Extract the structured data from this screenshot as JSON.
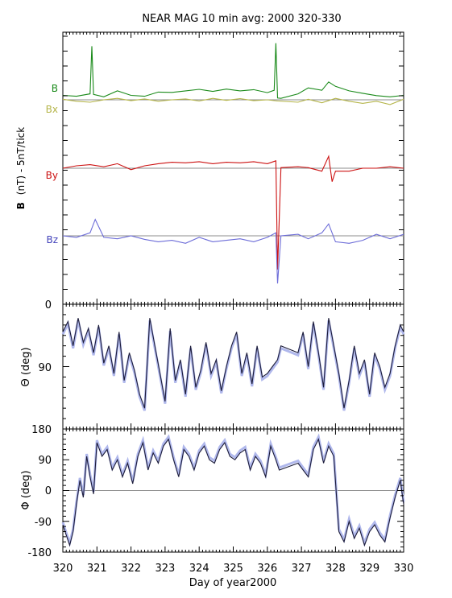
{
  "chart_data": [
    {
      "type": "line",
      "panel": "magnetic-field-components",
      "title": "NEAR MAG 10 min avg: 2000 320-330",
      "ylabel_bold": "B",
      "ylabel_rest": "(nT) - 5nT/tick",
      "ytick_labels": [
        "0"
      ],
      "xlim": [
        320,
        330
      ],
      "series": [
        {
          "name": "B",
          "color": "#1a8a1a",
          "baseline_label_only": true,
          "x": [
            320.0,
            320.4,
            320.8,
            320.85,
            320.9,
            321.2,
            321.6,
            322.0,
            322.4,
            322.8,
            323.2,
            323.6,
            324.0,
            324.4,
            324.8,
            325.2,
            325.6,
            326.0,
            326.2,
            326.25,
            326.3,
            326.4,
            326.9,
            327.2,
            327.6,
            327.8,
            328.0,
            328.4,
            328.8,
            329.2,
            329.6,
            330.0
          ],
          "values": [
            1.5,
            1.2,
            2.0,
            18.0,
            1.8,
            1.0,
            3.0,
            1.5,
            1.2,
            2.6,
            2.5,
            3.0,
            3.5,
            2.8,
            3.6,
            3.0,
            3.4,
            2.4,
            3.2,
            19.0,
            0.6,
            0.5,
            2.0,
            4.0,
            3.2,
            6.0,
            4.5,
            3.0,
            2.2,
            1.4,
            1.0,
            1.5
          ]
        },
        {
          "name": "Bx",
          "color": "#b5b54a",
          "x": [
            320.0,
            320.4,
            320.8,
            321.2,
            321.6,
            322.0,
            322.4,
            322.8,
            323.2,
            323.6,
            324.0,
            324.4,
            324.8,
            325.2,
            325.6,
            326.0,
            326.3,
            326.9,
            327.2,
            327.6,
            328.0,
            328.4,
            328.8,
            329.2,
            329.6,
            330.0
          ],
          "values": [
            0.2,
            -0.5,
            -0.8,
            0.0,
            0.5,
            -0.3,
            0.3,
            -0.5,
            0.0,
            0.3,
            -0.4,
            0.5,
            -0.2,
            0.4,
            -0.3,
            0.0,
            -0.4,
            -0.8,
            0.2,
            -1.0,
            0.5,
            -0.5,
            -1.2,
            -0.5,
            -1.6,
            0.2
          ]
        },
        {
          "name": "By",
          "color": "#cc1111",
          "x": [
            320.0,
            320.4,
            320.8,
            321.2,
            321.6,
            322.0,
            322.4,
            322.8,
            323.2,
            323.6,
            324.0,
            324.4,
            324.8,
            325.2,
            325.6,
            326.0,
            326.25,
            326.3,
            326.4,
            326.9,
            327.2,
            327.6,
            327.8,
            327.9,
            328.0,
            328.4,
            328.8,
            329.2,
            329.6,
            330.0
          ],
          "values": [
            0.0,
            0.8,
            1.2,
            0.5,
            1.5,
            -0.5,
            0.8,
            1.5,
            2.0,
            1.8,
            2.2,
            1.5,
            2.0,
            1.8,
            2.2,
            1.5,
            2.5,
            -34.0,
            0.2,
            0.5,
            0.2,
            -1.0,
            4.0,
            -4.5,
            -1.0,
            -1.0,
            0.0,
            0.0,
            0.5,
            0.0
          ]
        },
        {
          "name": "Bz",
          "color": "#6c6cd8",
          "x": [
            320.0,
            320.4,
            320.8,
            320.95,
            321.2,
            321.6,
            322.0,
            322.4,
            322.8,
            323.2,
            323.6,
            324.0,
            324.4,
            324.8,
            325.2,
            325.6,
            326.0,
            326.25,
            326.3,
            326.4,
            326.9,
            327.2,
            327.6,
            327.8,
            328.0,
            328.4,
            328.8,
            329.2,
            329.6,
            330.0
          ],
          "values": [
            0.0,
            -0.5,
            1.0,
            5.5,
            -0.5,
            -1.0,
            0.0,
            -1.2,
            -2.0,
            -1.5,
            -2.5,
            -0.5,
            -2.0,
            -1.5,
            -1.0,
            -2.0,
            -0.5,
            1.0,
            -16.0,
            0.0,
            0.5,
            -1.0,
            1.0,
            4.0,
            -2.0,
            -2.5,
            -1.5,
            0.5,
            -1.0,
            0.5
          ]
        }
      ],
      "baseline_color": "#8c8c8c"
    },
    {
      "type": "line",
      "panel": "theta",
      "ylabel": "Θ (deg)",
      "ytick_labels": [
        "90"
      ],
      "ylim": [
        0,
        180
      ],
      "xlim": [
        320,
        330
      ],
      "color": "#1c1c3a",
      "band_color": "#b0b8ec",
      "x": [
        320.0,
        320.15,
        320.3,
        320.45,
        320.6,
        320.75,
        320.9,
        321.05,
        321.2,
        321.35,
        321.5,
        321.65,
        321.8,
        321.95,
        322.1,
        322.25,
        322.4,
        322.55,
        322.7,
        322.85,
        323.0,
        323.15,
        323.3,
        323.45,
        323.6,
        323.75,
        323.9,
        324.05,
        324.2,
        324.35,
        324.5,
        324.65,
        324.8,
        324.95,
        325.1,
        325.25,
        325.4,
        325.55,
        325.7,
        325.85,
        326.0,
        326.15,
        326.3,
        326.4,
        326.9,
        327.05,
        327.2,
        327.35,
        327.5,
        327.65,
        327.8,
        327.95,
        328.1,
        328.25,
        328.4,
        328.55,
        328.7,
        328.85,
        329.0,
        329.15,
        329.3,
        329.45,
        329.6,
        329.75,
        329.9,
        330.0
      ],
      "values": [
        40,
        25,
        60,
        20,
        55,
        35,
        70,
        30,
        85,
        60,
        100,
        40,
        110,
        70,
        95,
        130,
        150,
        20,
        60,
        100,
        140,
        35,
        110,
        80,
        130,
        60,
        120,
        95,
        55,
        100,
        80,
        125,
        90,
        60,
        40,
        100,
        70,
        115,
        60,
        105,
        100,
        90,
        80,
        60,
        70,
        40,
        90,
        25,
        70,
        120,
        20,
        60,
        100,
        150,
        110,
        60,
        100,
        80,
        130,
        70,
        90,
        120,
        100,
        60,
        30,
        40
      ]
    },
    {
      "type": "line",
      "panel": "phi",
      "ylabel": "Φ (deg)",
      "ytick_labels": [
        "-180",
        "-90",
        "0",
        "90",
        "180"
      ],
      "ylim": [
        -180,
        180
      ],
      "xlim": [
        320,
        330
      ],
      "xlabel": "Day of year2000",
      "xtick_labels": [
        "320",
        "321",
        "322",
        "323",
        "324",
        "325",
        "326",
        "327",
        "328",
        "329",
        "330"
      ],
      "color": "#1c1c3a",
      "band_color": "#b0b8ec",
      "x": [
        320.0,
        320.1,
        320.2,
        320.3,
        320.4,
        320.5,
        320.6,
        320.7,
        320.8,
        320.9,
        321.0,
        321.15,
        321.3,
        321.45,
        321.6,
        321.75,
        321.9,
        322.05,
        322.2,
        322.35,
        322.5,
        322.65,
        322.8,
        322.95,
        323.1,
        323.25,
        323.4,
        323.55,
        323.7,
        323.85,
        324.0,
        324.15,
        324.3,
        324.45,
        324.6,
        324.75,
        324.9,
        325.05,
        325.2,
        325.35,
        325.5,
        325.65,
        325.8,
        325.95,
        326.1,
        326.25,
        326.35,
        326.9,
        327.05,
        327.2,
        327.35,
        327.5,
        327.65,
        327.8,
        327.95,
        328.1,
        328.25,
        328.4,
        328.55,
        328.7,
        328.85,
        329.0,
        329.15,
        329.3,
        329.45,
        329.6,
        329.75,
        329.9,
        330.0
      ],
      "values": [
        -100,
        -130,
        -160,
        -120,
        -40,
        30,
        -20,
        100,
        40,
        -10,
        140,
        100,
        120,
        60,
        90,
        40,
        80,
        20,
        100,
        140,
        60,
        110,
        80,
        130,
        150,
        90,
        40,
        120,
        100,
        60,
        110,
        130,
        90,
        80,
        120,
        140,
        100,
        90,
        110,
        120,
        60,
        100,
        80,
        40,
        130,
        90,
        60,
        80,
        60,
        40,
        120,
        150,
        80,
        130,
        100,
        -120,
        -150,
        -90,
        -140,
        -110,
        -160,
        -120,
        -100,
        -130,
        -150,
        -80,
        -20,
        30,
        -40
      ]
    }
  ]
}
